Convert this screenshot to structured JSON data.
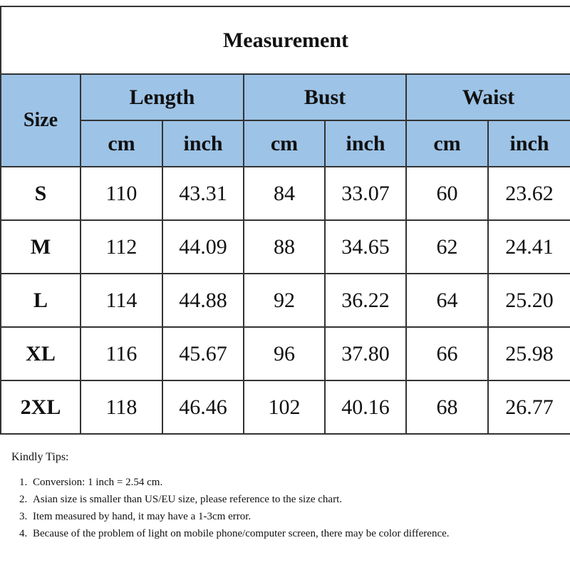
{
  "table": {
    "title": "Measurement",
    "size_header": "Size",
    "groups": [
      "Length",
      "Bust",
      "Waist"
    ],
    "units": [
      "cm",
      "inch",
      "cm",
      "inch",
      "cm",
      "inch"
    ],
    "rows": [
      [
        "S",
        "110",
        "43.31",
        "84",
        "33.07",
        "60",
        "23.62"
      ],
      [
        "M",
        "112",
        "44.09",
        "88",
        "34.65",
        "62",
        "24.41"
      ],
      [
        "L",
        "114",
        "44.88",
        "92",
        "36.22",
        "64",
        "25.20"
      ],
      [
        "XL",
        "116",
        "45.67",
        "96",
        "37.80",
        "66",
        "25.98"
      ],
      [
        "2XL",
        "118",
        "46.46",
        "102",
        "40.16",
        "68",
        "26.77"
      ]
    ]
  },
  "tips": {
    "title": "Kindly Tips:",
    "items": [
      "Conversion: 1 inch = 2.54 cm.",
      "Asian size is smaller than US/EU size, please reference to the size chart.",
      "Item measured by hand, it may have a 1-3cm error.",
      "Because of the problem of light on mobile phone/computer screen, there may be color difference."
    ]
  }
}
